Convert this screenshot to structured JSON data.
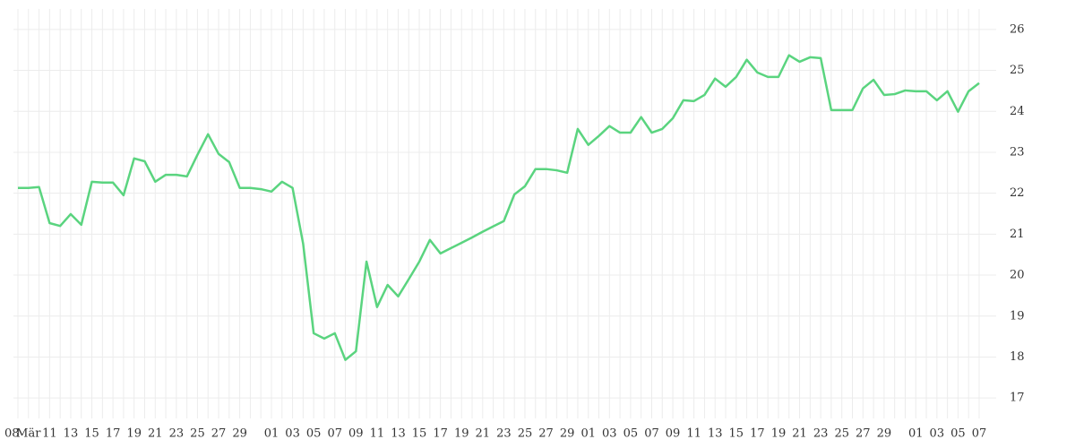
{
  "chart_data": {
    "type": "line",
    "categories": [
      "08",
      "Mär",
      null,
      "11",
      null,
      "13",
      null,
      "15",
      null,
      "17",
      null,
      "19",
      null,
      "21",
      null,
      "23",
      null,
      "25",
      null,
      "27",
      null,
      "29",
      null,
      null,
      "01",
      null,
      "03",
      null,
      "05",
      null,
      "07",
      null,
      "09",
      null,
      "11",
      null,
      "13",
      null,
      "15",
      null,
      "17",
      null,
      "19",
      null,
      "21",
      null,
      "23",
      null,
      "25",
      null,
      "27",
      null,
      "29",
      null,
      "01",
      null,
      "03",
      null,
      "05",
      null,
      "07",
      null,
      "09",
      null,
      "11",
      null,
      "13",
      null,
      "15",
      null,
      "17",
      null,
      "19",
      null,
      "21",
      null,
      "23",
      null,
      "25",
      null,
      "27",
      null,
      "29",
      null,
      null,
      "01",
      null,
      "03",
      null,
      "05",
      null,
      "07"
    ],
    "series": [
      {
        "color": "#5ad47f",
        "values": [
          22.13,
          22.13,
          22.15,
          21.27,
          21.2,
          21.49,
          21.23,
          22.28,
          22.26,
          22.26,
          21.95,
          22.85,
          22.78,
          22.28,
          22.45,
          22.45,
          22.41,
          22.94,
          23.44,
          22.96,
          22.76,
          22.13,
          22.13,
          22.1,
          22.04,
          22.28,
          22.13,
          20.77,
          18.58,
          18.45,
          18.58,
          17.93,
          18.14,
          20.33,
          19.22,
          19.76,
          19.48,
          19.9,
          20.33,
          20.86,
          20.53,
          20.66,
          20.79,
          20.92,
          21.06,
          21.19,
          21.32,
          21.97,
          22.17,
          22.59,
          22.59,
          22.56,
          22.5,
          23.57,
          23.18,
          23.4,
          23.64,
          23.48,
          23.48,
          23.86,
          23.48,
          23.57,
          23.83,
          24.27,
          24.25,
          24.4,
          24.8,
          24.6,
          24.84,
          25.26,
          24.95,
          24.84,
          24.84,
          25.37,
          25.21,
          25.32,
          25.3,
          24.03,
          24.03,
          24.03,
          24.56,
          24.77,
          24.4,
          24.42,
          24.51,
          24.49,
          24.49,
          24.27,
          24.49,
          23.99,
          24.49,
          24.69
        ]
      }
    ],
    "ylim": [
      16.5,
      26.5
    ],
    "yticks": [
      17,
      18,
      19,
      20,
      21,
      22,
      23,
      24,
      25,
      26
    ],
    "grid": true
  }
}
